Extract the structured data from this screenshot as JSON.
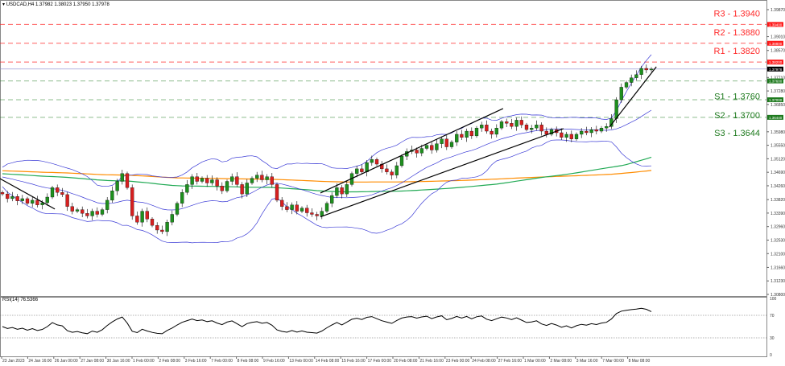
{
  "header": {
    "symbol_line": "USDCAD,H4  1.37982 1.38023 1.37950 1.37978",
    "menu_icon": "triangle-down-icon"
  },
  "levels": [
    {
      "label": "R3 - 1.3940",
      "value": 1.394,
      "tag": "1.39400",
      "color": "#ff2a2a"
    },
    {
      "label": "R2 - 1.3880",
      "value": 1.388,
      "tag": "1.38800",
      "color": "#ff2a2a"
    },
    {
      "label": "R1 - 1.3820",
      "value": 1.382,
      "tag": "1.38200",
      "color": "#ff2a2a"
    },
    {
      "label": "S1 - 1.3760",
      "value": 1.376,
      "tag": "1.37600",
      "color": "#1e7a1e"
    },
    {
      "label": "S2 - 1.3700",
      "value": 1.37,
      "tag": "1.37000",
      "color": "#1e7a1e"
    },
    {
      "label": "S3 - 1.3644",
      "value": 1.3644,
      "tag": "1.36440",
      "color": "#1e7a1e"
    }
  ],
  "rsi_label": "RSI(14) 76.5366",
  "chart_data": {
    "type": "candlestick",
    "symbol": "USDCAD",
    "timeframe": "H4",
    "ylim": [
      1.308,
      1.3995
    ],
    "y_ticks": [
      "1.39870",
      "1.39010",
      "1.38570",
      "1.37710",
      "1.37280",
      "1.36850",
      "1.35980",
      "1.35550",
      "1.35120",
      "1.34690",
      "1.34260",
      "1.33820",
      "1.33390",
      "1.32960",
      "1.32530",
      "1.32100",
      "1.31660",
      "1.31230",
      "1.30800"
    ],
    "current_price": "1.37978",
    "x_ticks": [
      "23 Jan 2023",
      "24 Jan 16:00",
      "26 Jan 00:00",
      "27 Jan 08:00",
      "30 Jan 16:00",
      "1 Feb 00:00",
      "2 Feb 08:00",
      "3 Feb 16:00",
      "7 Feb 00:00",
      "8 Feb 08:00",
      "9 Feb 16:00",
      "13 Feb 00:00",
      "14 Feb 08:00",
      "15 Feb 16:00",
      "17 Feb 00:00",
      "20 Feb 08:00",
      "21 Feb 16:00",
      "23 Feb 00:00",
      "24 Feb 08:00",
      "27 Feb 16:00",
      "1 Mar 00:00",
      "2 Mar 08:00",
      "3 Mar 16:00",
      "7 Mar 00:00",
      "8 Mar 08:00"
    ],
    "closes": [
      1.34,
      1.3385,
      1.3392,
      1.3378,
      1.3385,
      1.337,
      1.338,
      1.3365,
      1.3372,
      1.339,
      1.342,
      1.3405,
      1.3398,
      1.336,
      1.3345,
      1.335,
      1.3338,
      1.333,
      1.3345,
      1.3335,
      1.335,
      1.338,
      1.341,
      1.344,
      1.3465,
      1.342,
      1.333,
      1.331,
      1.3345,
      1.332,
      1.33,
      1.3285,
      1.328,
      1.331,
      1.3335,
      1.337,
      1.3405,
      1.343,
      1.3455,
      1.344,
      1.345,
      1.3435,
      1.3445,
      1.3425,
      1.341,
      1.344,
      1.3455,
      1.343,
      1.34,
      1.3435,
      1.345,
      1.346,
      1.3445,
      1.3455,
      1.343,
      1.338,
      1.336,
      1.335,
      1.3365,
      1.3345,
      1.3355,
      1.334,
      1.3335,
      1.333,
      1.3345,
      1.337,
      1.3395,
      1.342,
      1.34,
      1.343,
      1.3465,
      1.348,
      1.347,
      1.35,
      1.351,
      1.3495,
      1.348,
      1.347,
      1.346,
      1.349,
      1.352,
      1.3535,
      1.354,
      1.353,
      1.3545,
      1.3555,
      1.354,
      1.356,
      1.3575,
      1.355,
      1.3565,
      1.359,
      1.358,
      1.36,
      1.3585,
      1.361,
      1.362,
      1.36,
      1.359,
      1.361,
      1.363,
      1.3625,
      1.3615,
      1.3635,
      1.362,
      1.3605,
      1.361,
      1.362,
      1.36,
      1.359,
      1.3605,
      1.3595,
      1.358,
      1.359,
      1.3575,
      1.359,
      1.36,
      1.3595,
      1.3605,
      1.36,
      1.361,
      1.3615,
      1.364,
      1.37,
      1.374,
      1.3755,
      1.377,
      1.378,
      1.38,
      1.3795,
      1.37978
    ],
    "trendlines": [
      {
        "from": [
          -0.5,
          1.3449
        ],
        "to": [
          10.5,
          1.3352
        ]
      },
      {
        "from": [
          63.7,
          1.3403
        ],
        "to": [
          100.3,
          1.3672
        ]
      },
      {
        "from": [
          63.7,
          1.3327
        ],
        "to": [
          112.4,
          1.3608
        ]
      },
      {
        "from": [
          121.6,
          1.3613
        ],
        "to": [
          131,
          1.3805
        ]
      }
    ],
    "indicators": {
      "bollinger_color": "#3b3bd6",
      "ma_fast_color": "#22aa55",
      "ma_slow_color": "#ff8c00",
      "rsi_levels": [
        70,
        30
      ],
      "rsi_ylim": [
        0,
        100
      ],
      "rsi_ticks": [
        "100",
        "70",
        "30",
        "0"
      ],
      "rsi_last": 76.5366
    },
    "candle_colors": {
      "up": "#1e8f1e",
      "down": "#d62020"
    }
  }
}
